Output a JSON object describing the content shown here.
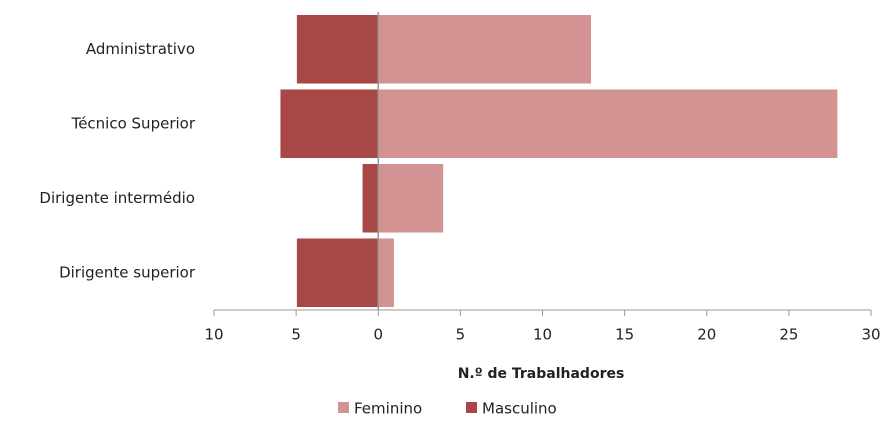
{
  "chart_data": {
    "type": "diverging-bar",
    "categories": [
      "Administrativo",
      "Técnico Superior",
      "Dirigente intermédio",
      "Dirigente superior"
    ],
    "series": [
      {
        "name": "Feminino",
        "color": "#d39392",
        "values": [
          13,
          28,
          4,
          1
        ]
      },
      {
        "name": "Masculino",
        "color": "#a84846",
        "values": [
          -5,
          -6,
          -1,
          -5
        ]
      }
    ],
    "x_label": "N.º de Trabalhadores",
    "xlim": [
      -10,
      30
    ],
    "xticks": [
      {
        "value": -10,
        "label": "10"
      },
      {
        "value": -5,
        "label": "5"
      },
      0,
      5,
      10,
      15,
      20,
      25,
      30
    ],
    "legend": "bottom"
  }
}
